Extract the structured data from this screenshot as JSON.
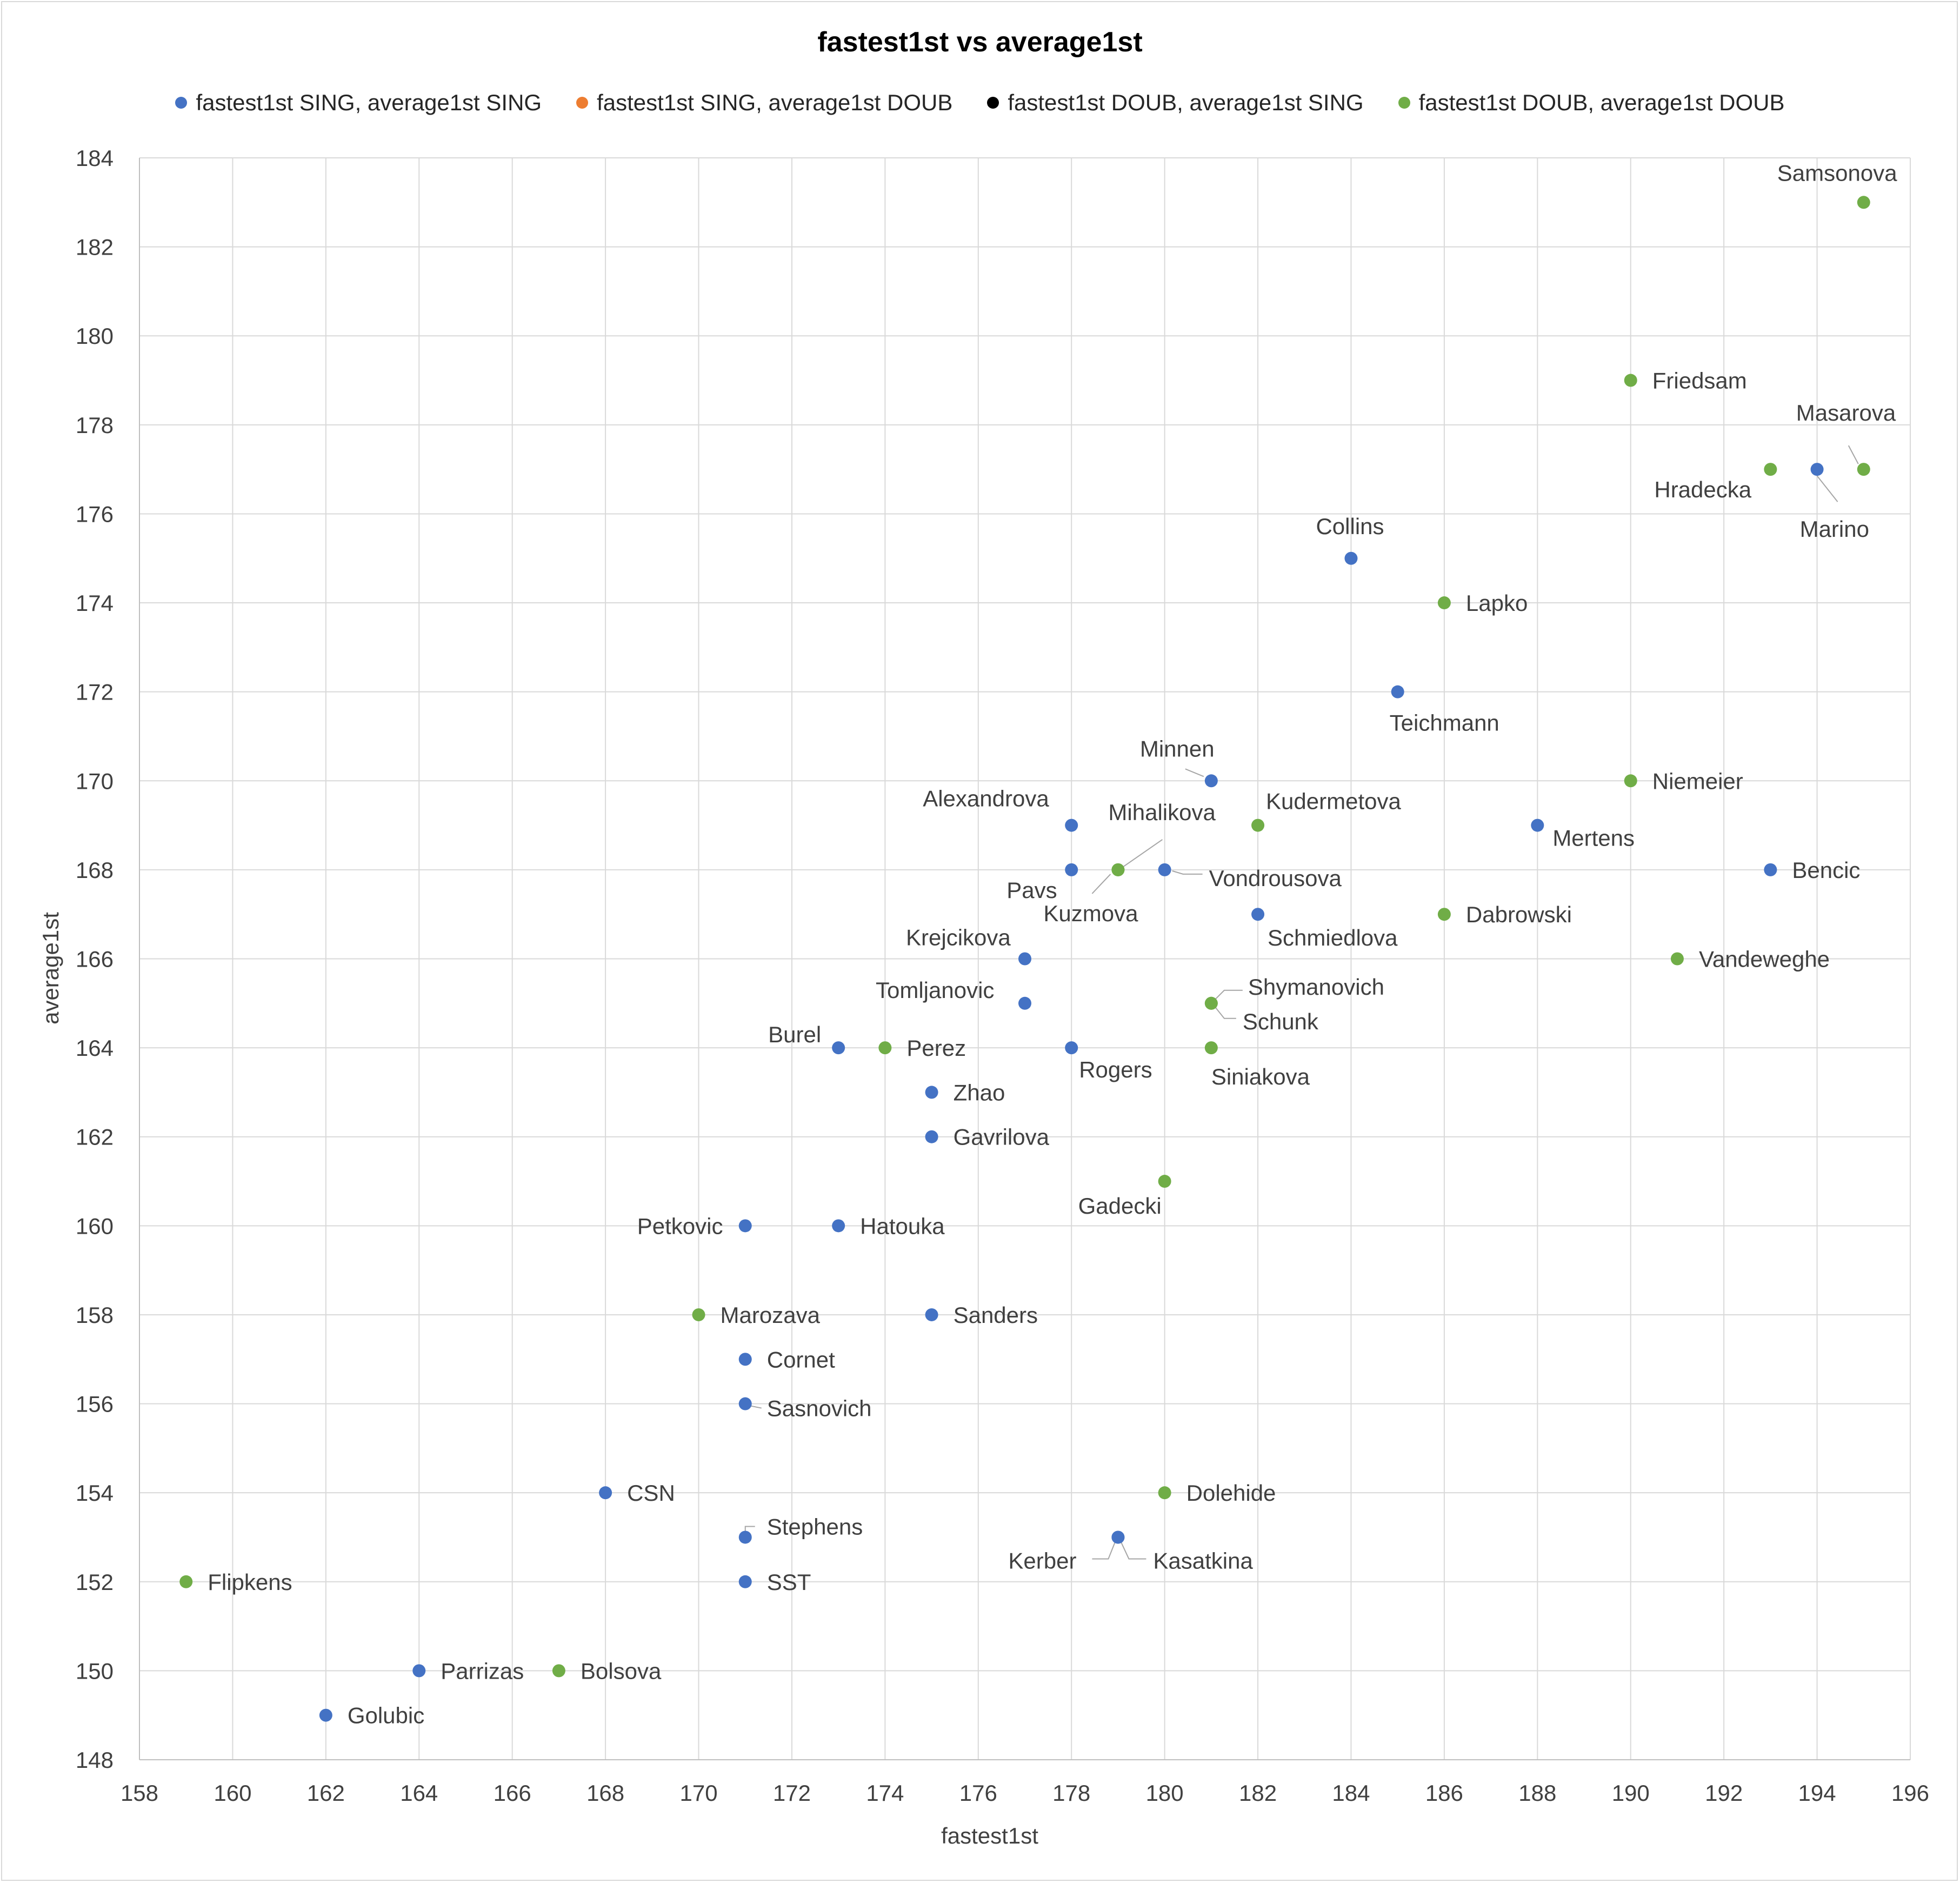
{
  "chart_data": {
    "type": "scatter",
    "title": "fastest1st vs average1st",
    "xlabel": "fastest1st",
    "ylabel": "average1st",
    "xlim": [
      158,
      196
    ],
    "ylim": [
      148,
      184
    ],
    "xticks": [
      "158",
      "160",
      "162",
      "164",
      "166",
      "168",
      "170",
      "172",
      "174",
      "176",
      "178",
      "180",
      "182",
      "184",
      "186",
      "188",
      "190",
      "192",
      "194",
      "196"
    ],
    "yticks": [
      "148",
      "150",
      "152",
      "154",
      "156",
      "158",
      "160",
      "162",
      "164",
      "166",
      "168",
      "170",
      "172",
      "174",
      "176",
      "178",
      "180",
      "182",
      "184"
    ],
    "grid": true,
    "legend_position": "top",
    "series": [
      {
        "name": "fastest1st SING, average1st SING",
        "color": "#4472c4",
        "points": [
          {
            "label": "Marino",
            "x": 194,
            "y": 177
          },
          {
            "label": "Collins",
            "x": 184,
            "y": 175
          },
          {
            "label": "Teichmann",
            "x": 185,
            "y": 172
          },
          {
            "label": "Minnen",
            "x": 181,
            "y": 170
          },
          {
            "label": "Alexandrova",
            "x": 178,
            "y": 169
          },
          {
            "label": "Mertens",
            "x": 188,
            "y": 169
          },
          {
            "label": "Pavs",
            "x": 178,
            "y": 168
          },
          {
            "label": "Vondrousova",
            "x": 180,
            "y": 168
          },
          {
            "label": "Bencic",
            "x": 193,
            "y": 168
          },
          {
            "label": "Schmiedlova",
            "x": 182,
            "y": 167
          },
          {
            "label": "Krejcikova",
            "x": 177,
            "y": 166
          },
          {
            "label": "Tomljanovic",
            "x": 177,
            "y": 165
          },
          {
            "label": "Burel",
            "x": 173,
            "y": 164
          },
          {
            "label": "Rogers",
            "x": 178,
            "y": 164
          },
          {
            "label": "Zhao",
            "x": 175,
            "y": 163
          },
          {
            "label": "Gavrilova",
            "x": 175,
            "y": 162
          },
          {
            "label": "Petkovic",
            "x": 171,
            "y": 160
          },
          {
            "label": "Hatouka",
            "x": 173,
            "y": 160
          },
          {
            "label": "Sanders",
            "x": 175,
            "y": 158
          },
          {
            "label": "Cornet",
            "x": 171,
            "y": 157
          },
          {
            "label": "Sasnovich",
            "x": 171,
            "y": 156
          },
          {
            "label": "CSN",
            "x": 168,
            "y": 154
          },
          {
            "label": "Stephens",
            "x": 171,
            "y": 153
          },
          {
            "label": "Kerber",
            "x": 179,
            "y": 153
          },
          {
            "label": "Kasatkina",
            "x": 179,
            "y": 153
          },
          {
            "label": "SST",
            "x": 171,
            "y": 152
          },
          {
            "label": "Parrizas",
            "x": 164,
            "y": 150
          },
          {
            "label": "Golubic",
            "x": 162,
            "y": 149
          }
        ]
      },
      {
        "name": "fastest1st SING, average1st DOUB",
        "color": "#ed7d31",
        "points": []
      },
      {
        "name": "fastest1st DOUB, average1st SING",
        "color": "#000000",
        "points": []
      },
      {
        "name": "fastest1st DOUB, average1st DOUB",
        "color": "#70ad47",
        "points": [
          {
            "label": "Samsonova",
            "x": 195,
            "y": 183
          },
          {
            "label": "Friedsam",
            "x": 190,
            "y": 179
          },
          {
            "label": "Masarova",
            "x": 195,
            "y": 177
          },
          {
            "label": "Hradecka",
            "x": 193,
            "y": 177
          },
          {
            "label": "Lapko",
            "x": 186,
            "y": 174
          },
          {
            "label": "Niemeier",
            "x": 190,
            "y": 170
          },
          {
            "label": "Kudermetova",
            "x": 182,
            "y": 169
          },
          {
            "label": "Mihalikova",
            "x": 179,
            "y": 168
          },
          {
            "label": "Kuzmova",
            "x": 179,
            "y": 168
          },
          {
            "label": "Dabrowski",
            "x": 186,
            "y": 167
          },
          {
            "label": "Vandeweghe",
            "x": 191,
            "y": 166
          },
          {
            "label": "Shymanovich",
            "x": 181,
            "y": 165
          },
          {
            "label": "Schunk",
            "x": 181,
            "y": 165
          },
          {
            "label": "Perez",
            "x": 174,
            "y": 164
          },
          {
            "label": "Siniakova",
            "x": 181,
            "y": 164
          },
          {
            "label": "Gadecki",
            "x": 180,
            "y": 161
          },
          {
            "label": "Marozava",
            "x": 170,
            "y": 158
          },
          {
            "label": "Dolehide",
            "x": 180,
            "y": 154
          },
          {
            "label": "Flipkens",
            "x": 159,
            "y": 152
          },
          {
            "label": "Bolsova",
            "x": 167,
            "y": 150
          }
        ]
      }
    ]
  }
}
